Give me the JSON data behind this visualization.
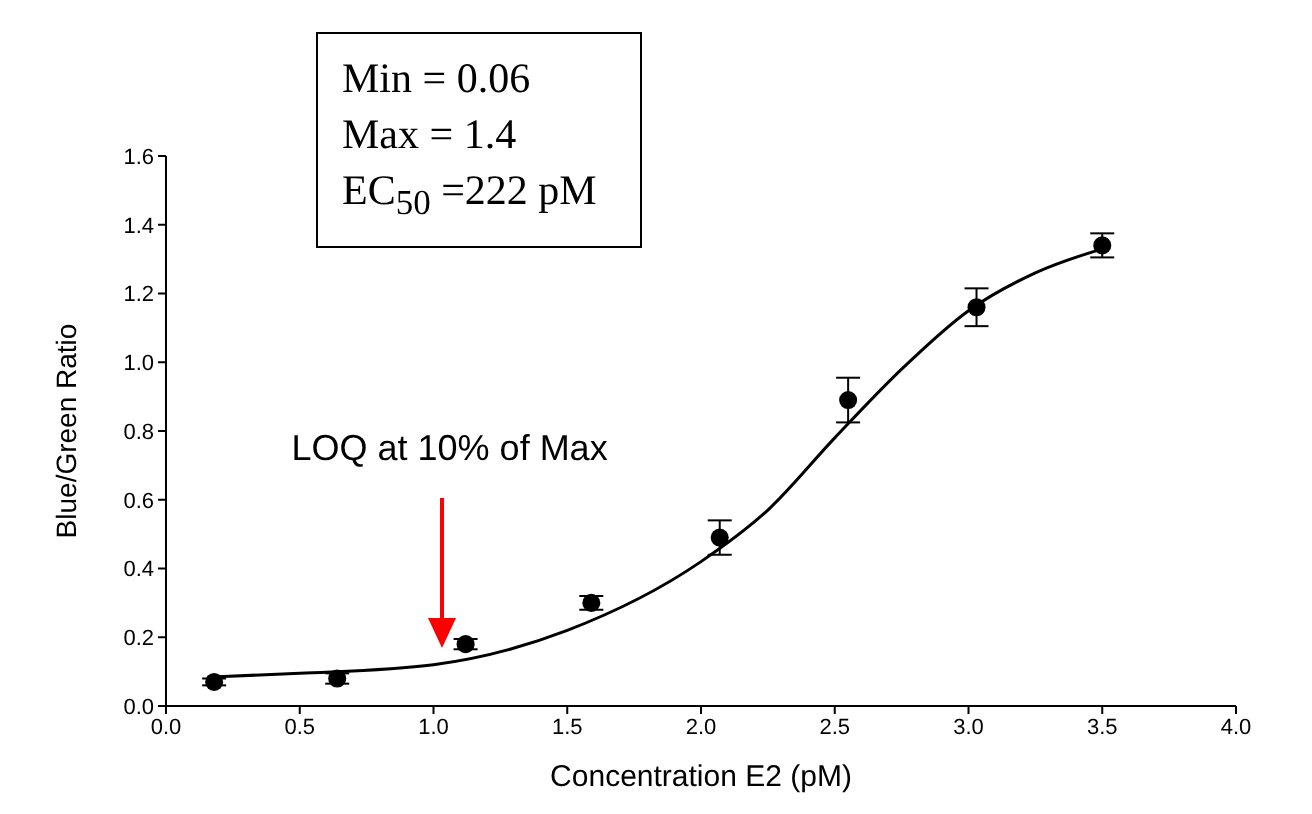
{
  "chart_data": {
    "type": "scatter",
    "xlabel": "Concentration E2 (pM)",
    "ylabel": "Blue/Green Ratio",
    "xlim": [
      0,
      4
    ],
    "ylim": [
      0,
      1.6
    ],
    "xticks": [
      {
        "value": 0,
        "label": "0.0"
      },
      {
        "value": 0.5,
        "label": "0.5"
      },
      {
        "value": 1,
        "label": "1.0"
      },
      {
        "value": 1.5,
        "label": "1.5"
      },
      {
        "value": 2,
        "label": "2.0"
      },
      {
        "value": 2.5,
        "label": "2.5"
      },
      {
        "value": 3,
        "label": "3.0"
      },
      {
        "value": 3.5,
        "label": "3.5"
      },
      {
        "value": 4,
        "label": "4.0"
      }
    ],
    "yticks": [
      {
        "value": 0,
        "label": "0.0"
      },
      {
        "value": 0.2,
        "label": "0.2"
      },
      {
        "value": 0.4,
        "label": "0.4"
      },
      {
        "value": 0.6,
        "label": "0.6"
      },
      {
        "value": 0.8,
        "label": "0.8"
      },
      {
        "value": 1,
        "label": "1.0"
      },
      {
        "value": 1.2,
        "label": "1.2"
      },
      {
        "value": 1.4,
        "label": "1.4"
      },
      {
        "value": 1.6,
        "label": "1.6"
      }
    ],
    "grid": false,
    "legend": false,
    "series": [
      {
        "marker": "circle",
        "color": "#000000",
        "x": [
          0.18,
          0.64,
          1.12,
          1.59,
          2.07,
          2.55,
          3.03,
          3.5
        ],
        "values": [
          0.07,
          0.08,
          0.18,
          0.3,
          0.49,
          0.89,
          1.16,
          1.34
        ],
        "errors": [
          0.01,
          0.015,
          0.015,
          0.02,
          0.05,
          0.065,
          0.055,
          0.035
        ]
      },
      {
        "type": "line",
        "color": "#000000",
        "x": [
          0.18,
          0.5,
          1.0,
          1.5,
          2.0,
          2.25,
          2.5,
          2.75,
          3.0,
          3.25,
          3.5
        ],
        "values": [
          0.085,
          0.095,
          0.12,
          0.22,
          0.42,
          0.57,
          0.78,
          0.98,
          1.15,
          1.26,
          1.33
        ]
      }
    ],
    "annotations": [
      "Min = 0.06",
      "Max = 1.4",
      "EC$_{50}$ =222 pM",
      "LOQ at 10% of Max"
    ]
  }
}
